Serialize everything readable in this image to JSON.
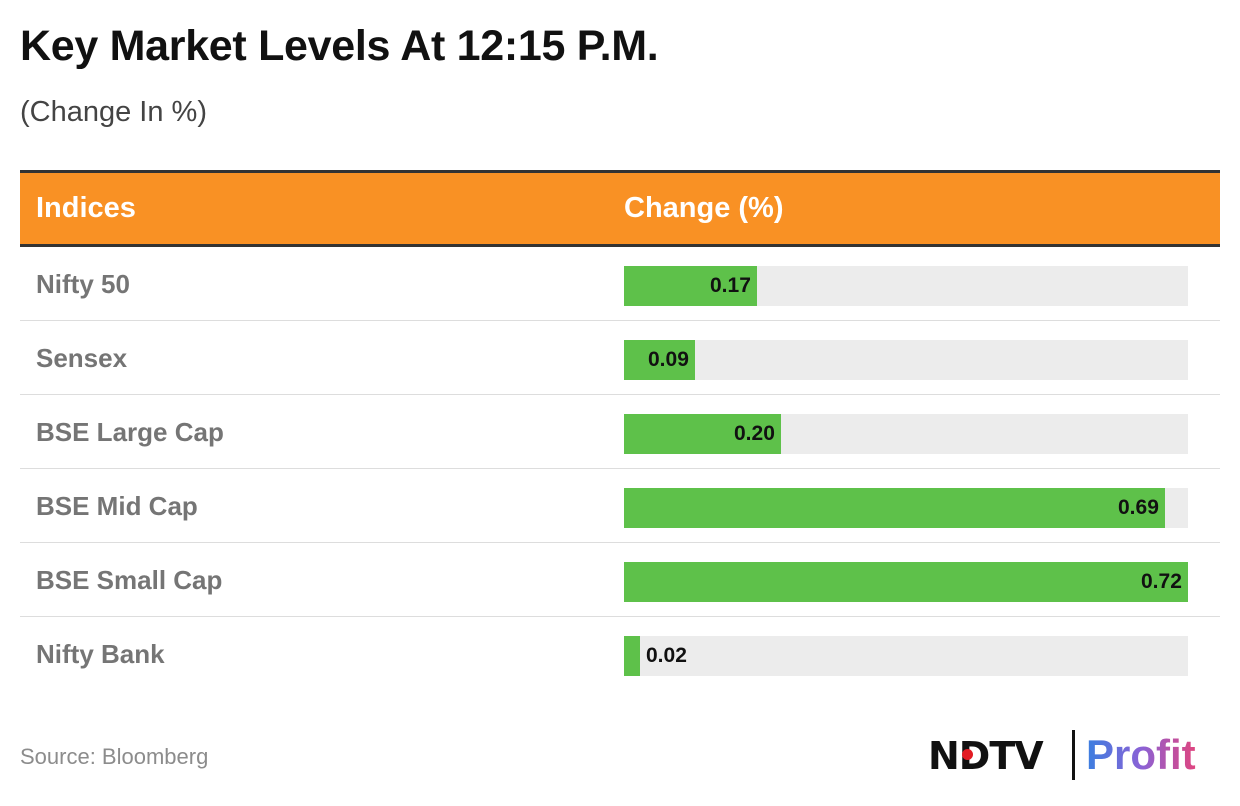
{
  "title": "Key Market Levels At 12:15 P.M.",
  "subtitle": "(Change In %)",
  "table": {
    "headers": {
      "index": "Indices",
      "change": "Change (%)"
    }
  },
  "source": "Source: Bloomberg",
  "logo": {
    "brand": "NDTV",
    "product": "Profit"
  },
  "colors": {
    "header_bg": "#f99124",
    "bar_positive": "#5ec14a",
    "track": "#ececec"
  },
  "chart_data": {
    "type": "bar",
    "orientation": "horizontal",
    "title": "Key Market Levels At 12:15 P.M.",
    "subtitle": "(Change In %)",
    "categories": [
      "Nifty 50",
      "Sensex",
      "BSE Large Cap",
      "BSE Mid Cap",
      "BSE Small Cap",
      "Nifty Bank"
    ],
    "series": [
      {
        "name": "Change (%)",
        "values": [
          0.17,
          0.09,
          0.2,
          0.69,
          0.72,
          0.02
        ],
        "labels": [
          "0.17",
          "0.09",
          "0.20",
          "0.69",
          "0.72",
          "0.02"
        ]
      }
    ],
    "xlim": [
      0,
      0.72
    ],
    "grid": false,
    "legend": "none"
  }
}
